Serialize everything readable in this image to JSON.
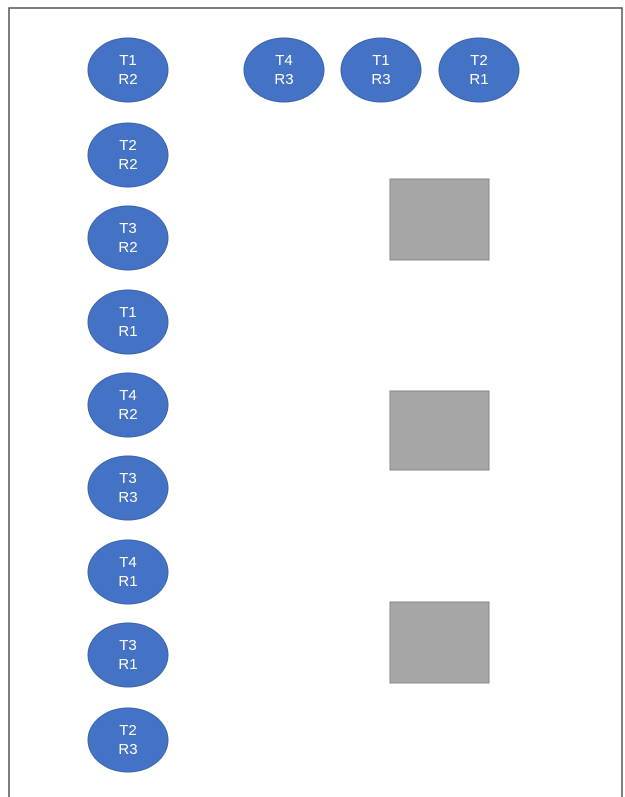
{
  "nodes": [
    {
      "lines": [
        "T1",
        "R2"
      ]
    },
    {
      "lines": [
        "T4",
        "R3"
      ]
    },
    {
      "lines": [
        "T1",
        "R3"
      ]
    },
    {
      "lines": [
        "T2",
        "R1"
      ]
    },
    {
      "lines": [
        "T2",
        "R2"
      ]
    },
    {
      "lines": [
        "T3",
        "R2"
      ]
    },
    {
      "lines": [
        "T1",
        "R1"
      ]
    },
    {
      "lines": [
        "T4",
        "R2"
      ]
    },
    {
      "lines": [
        "T3",
        "R3"
      ]
    },
    {
      "lines": [
        "T4",
        "R1"
      ]
    },
    {
      "lines": [
        "T3",
        "R1"
      ]
    },
    {
      "lines": [
        "T2",
        "R3"
      ]
    }
  ]
}
